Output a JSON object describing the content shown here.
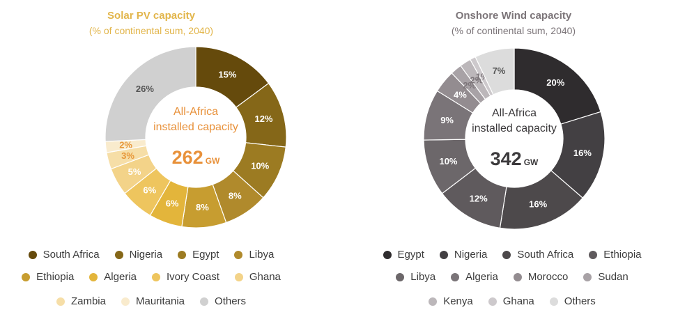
{
  "chart_data": [
    {
      "type": "pie",
      "title": "Solar PV capacity",
      "subtitle": "(% of continental sum, 2040)",
      "center_text": [
        "All-Africa",
        "installed capacity"
      ],
      "center_value": "262",
      "center_unit": "GW",
      "text_color": "#e2b54a",
      "center_color": "#e8913a",
      "slices": [
        {
          "name": "South Africa",
          "value": 15,
          "color": "#654a0c",
          "label_color": "#ffffff"
        },
        {
          "name": "Nigeria",
          "value": 12,
          "color": "#856718",
          "label_color": "#ffffff"
        },
        {
          "name": "Egypt",
          "value": 10,
          "color": "#9c7b22",
          "label_color": "#ffffff"
        },
        {
          "name": "Libya",
          "value": 8,
          "color": "#b08a2c",
          "label_color": "#ffffff"
        },
        {
          "name": "Ethiopia",
          "value": 8,
          "color": "#c79d30",
          "label_color": "#ffffff"
        },
        {
          "name": "Algeria",
          "value": 6,
          "color": "#e3b53b",
          "label_color": "#ffffff"
        },
        {
          "name": "Ivory Coast",
          "value": 6,
          "color": "#eec55e",
          "label_color": "#ffffff"
        },
        {
          "name": "Ghana",
          "value": 5,
          "color": "#f3d389",
          "label_color": "#ffffff"
        },
        {
          "name": "Zambia",
          "value": 3,
          "color": "#f6dea7",
          "label_color": "#e7973a"
        },
        {
          "name": "Mauritania",
          "value": 2,
          "color": "#f9ebcd",
          "label_color": "#e7973a"
        },
        {
          "name": "Others",
          "value": 26,
          "color": "#d0d0d0",
          "label_color": "#555555"
        }
      ],
      "legend_rows": [
        [
          "South Africa",
          "Nigeria",
          "Egypt",
          "Libya"
        ],
        [
          "Ethiopia",
          "Algeria",
          "Ivory Coast",
          "Ghana"
        ],
        [
          "Zambia",
          "Mauritania",
          "Others"
        ]
      ]
    },
    {
      "type": "pie",
      "title": "Onshore Wind capacity",
      "subtitle": "(% of continental sum, 2040)",
      "center_text": [
        "All-Africa",
        "installed capacity"
      ],
      "center_value": "342",
      "center_unit": "GW",
      "text_color": "#7c7579",
      "center_color": "#3c3a3c",
      "slices": [
        {
          "name": "Egypt",
          "value": 20,
          "color": "#2f2c2e",
          "label_color": "#ffffff"
        },
        {
          "name": "Nigeria",
          "value": 16,
          "color": "#434043",
          "label_color": "#ffffff"
        },
        {
          "name": "South Africa",
          "value": 16,
          "color": "#4d494b",
          "label_color": "#ffffff"
        },
        {
          "name": "Ethiopia",
          "value": 12,
          "color": "#5f5a5d",
          "label_color": "#ffffff"
        },
        {
          "name": "Libya",
          "value": 10,
          "color": "#6c676a",
          "label_color": "#ffffff"
        },
        {
          "name": "Algeria",
          "value": 9,
          "color": "#7a7478",
          "label_color": "#ffffff"
        },
        {
          "name": "Morocco",
          "value": 4,
          "color": "#938c90",
          "label_color": "#ffffff"
        },
        {
          "name": "Sudan",
          "value": 2,
          "color": "#a8a2a6",
          "label_color": "#7c7579"
        },
        {
          "name": "Kenya",
          "value": 2,
          "color": "#bcb7ba",
          "label_color": "#7c7579"
        },
        {
          "name": "Ghana",
          "value": 1,
          "color": "#cdc9cc",
          "label_color": "#7c7579"
        },
        {
          "name": "Others",
          "value": 7,
          "color": "#dcdcdc",
          "label_color": "#555555"
        }
      ],
      "legend_rows": [
        [
          "Egypt",
          "Nigeria",
          "South Africa",
          "Ethiopia"
        ],
        [
          "Libya",
          "Algeria",
          "Morocco",
          "Sudan"
        ],
        [
          "Kenya",
          "Ghana",
          "Others"
        ]
      ]
    }
  ]
}
